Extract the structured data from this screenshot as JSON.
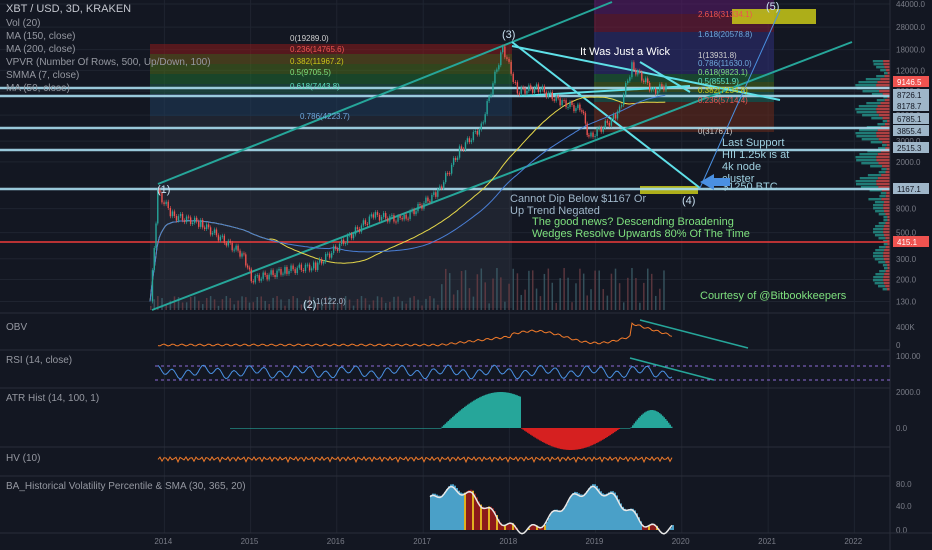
{
  "header": {
    "symbol": "XBT / USD, 3D, KRAKEN",
    "indicators": [
      "Vol (20)",
      "MA (150, close)",
      "MA (200, close)",
      "VPVR (Number Of Rows, 500, Up/Down, 100)",
      "SMMA (7, close)",
      "MA (50, close)"
    ]
  },
  "panes": {
    "obv": "OBV",
    "rsi": "RSI (14, close)",
    "atr": "ATR Hist (14, 100, 1)",
    "hv": "HV (10)",
    "bbw": "BA_Historical Volatility Percentile & SMA (30, 365, 20)"
  },
  "annotations": {
    "wick": "It Was Just a Wick",
    "support": [
      "Last Support",
      "HII 1.25k is at",
      "4k node",
      "cluster",
      "$1250 BTC"
    ],
    "dip": [
      "Cannot Dip Below $1167 Or",
      "Up Trend Negated"
    ],
    "news": [
      "The good news?  Descending Broadening",
      "Wedges Resolve Upwards 80% Of The Time"
    ],
    "courtesy": "Courtesy of @Bitbookkeepers",
    "waves": [
      "(1)",
      "(2)",
      "(3)",
      "(4)",
      "(5)"
    ]
  },
  "fib_left": [
    "0(19289.0)",
    "0.236(14765.6)",
    "0.382(11967.2)",
    "0.5(9705.5)",
    "0.618(7443.8)",
    "0.786(4223.7)",
    "1(122.0)"
  ],
  "fib_right": [
    "2.618(31334.1)",
    "1.618(20578.8)",
    "1(13931.8)",
    "0.786(11630.0)",
    "0.618(9823.1)",
    "0.5(8551.9)",
    "0.382(7234.8)",
    "0.236(5714.4)",
    "0(3176.1)"
  ],
  "chart_data": {
    "type": "line",
    "x_ticks": [
      "2014",
      "2015",
      "2016",
      "2017",
      "2018",
      "2019",
      "2020",
      "2021",
      "2022"
    ],
    "y_ticks": [
      "44000.0",
      "28000.0",
      "18000.0",
      "12000.0",
      "8000.0",
      "5000.0",
      "3000.0",
      "2000.0",
      "1200.0",
      "800.0",
      "500.0",
      "300.0",
      "200.0",
      "130.0"
    ],
    "price_labels": [
      {
        "text": "9146.5",
        "color": "#ef5350"
      },
      {
        "text": "8726.1",
        "color": "#9fb6c9"
      },
      {
        "text": "8178.7",
        "color": "#9fb6c9"
      },
      {
        "text": "6785.1",
        "color": "#9fb6c9"
      },
      {
        "text": "3855.4",
        "color": "#9fb6c9"
      },
      {
        "text": "2515.3",
        "color": "#9fb6c9"
      },
      {
        "text": "1167.1",
        "color": "#9fb6c9"
      },
      {
        "text": "415.1",
        "color": "#ef5350"
      }
    ],
    "obv_ticks": [
      "400K",
      "0"
    ],
    "rsi_ticks": [
      "100.00"
    ],
    "atr_ticks": [
      "2000.0",
      "0.0"
    ],
    "bbw_ticks": [
      "80.0",
      "40.0",
      "0.0"
    ],
    "price_series": {
      "x": [
        "2013-11",
        "2013-12",
        "2014-02",
        "2014-06",
        "2014-12",
        "2015-01",
        "2015-06",
        "2015-10",
        "2016-06",
        "2016-10",
        "2017-03",
        "2017-06",
        "2017-09",
        "2017-12",
        "2018-02",
        "2018-05",
        "2018-08",
        "2018-11",
        "2018-12",
        "2019-04",
        "2019-06",
        "2019-09",
        "2019-11"
      ],
      "y": [
        130,
        1100,
        700,
        600,
        320,
        200,
        240,
        260,
        700,
        640,
        1100,
        2500,
        4000,
        19000,
        8000,
        8500,
        6500,
        5500,
        3200,
        5000,
        13000,
        8000,
        9146
      ]
    },
    "ylim": [
      110,
      44000
    ],
    "yscale": "log",
    "grid": true
  }
}
